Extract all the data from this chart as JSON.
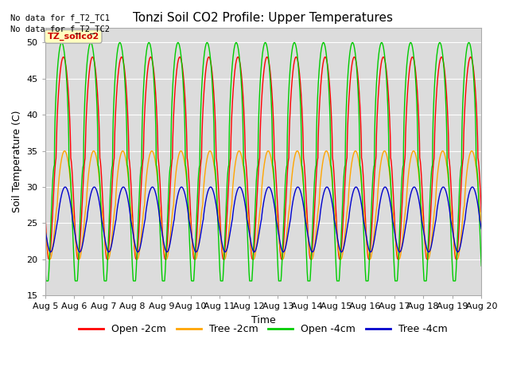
{
  "title": "Tonzi Soil CO2 Profile: Upper Temperatures",
  "ylabel": "Soil Temperature (C)",
  "xlabel": "Time",
  "top_text_1": "No data for f_T2_TC1",
  "top_text_2": "No data for f_T2_TC2",
  "legend_label": "TZ_soilco2",
  "ylim": [
    15,
    52
  ],
  "yticks": [
    15,
    20,
    25,
    30,
    35,
    40,
    45,
    50
  ],
  "n_days": 15,
  "start_day": 5,
  "colors": {
    "open_2cm": "#ff0000",
    "tree_2cm": "#ffa500",
    "open_4cm": "#00cc00",
    "tree_4cm": "#0000cc"
  },
  "legend_entries": [
    {
      "label": "Open -2cm",
      "color": "#ff0000"
    },
    {
      "label": "Tree -2cm",
      "color": "#ffa500"
    },
    {
      "label": "Open -4cm",
      "color": "#00cc00"
    },
    {
      "label": "Tree -4cm",
      "color": "#0000cc"
    }
  ],
  "bg_color": "#dcdcdc",
  "fig_bg": "#ffffff",
  "linewidth": 1.0,
  "grid_color": "#ffffff",
  "open_2cm": {
    "base": 34,
    "amp": 14,
    "phase": 0.38,
    "min": 20,
    "max": 49
  },
  "tree_2cm": {
    "base": 27.5,
    "amp": 7.5,
    "phase": 0.42,
    "min": 20,
    "max": 36
  },
  "open_4cm": {
    "base": 33,
    "amp": 17,
    "phase": 0.32,
    "min": 17,
    "max": 51
  },
  "tree_4cm": {
    "base": 25.5,
    "amp": 4.5,
    "phase": 0.44,
    "min": 21,
    "max": 31
  }
}
